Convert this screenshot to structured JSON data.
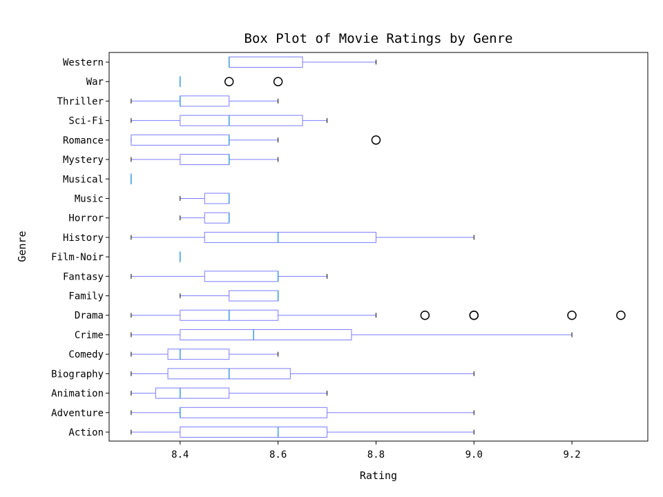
{
  "chart_data": {
    "type": "boxplot",
    "orientation": "horizontal",
    "title": "Box Plot of Movie Ratings by Genre",
    "xlabel": "Rating",
    "ylabel": "Genre",
    "xlim": [
      8.255,
      9.355
    ],
    "xticks": [
      8.4,
      8.6,
      8.8,
      9.0,
      9.2
    ],
    "xtick_labels": [
      "8.4",
      "8.6",
      "8.8",
      "9.0",
      "9.2"
    ],
    "grid": false,
    "box_color": "#7b7bff",
    "median_color": "#3a9be0",
    "flier_color": "#000000",
    "categories": [
      "Action",
      "Adventure",
      "Animation",
      "Biography",
      "Comedy",
      "Crime",
      "Drama",
      "Family",
      "Fantasy",
      "Film-Noir",
      "History",
      "Horror",
      "Music",
      "Musical",
      "Mystery",
      "Romance",
      "Sci-Fi",
      "Thriller",
      "War",
      "Western"
    ],
    "boxes": [
      {
        "name": "Action",
        "whislo": 8.3,
        "q1": 8.4,
        "med": 8.6,
        "q3": 8.7,
        "whishi": 9.0,
        "fliers": []
      },
      {
        "name": "Adventure",
        "whislo": 8.3,
        "q1": 8.4,
        "med": 8.4,
        "q3": 8.7,
        "whishi": 9.0,
        "fliers": []
      },
      {
        "name": "Animation",
        "whislo": 8.3,
        "q1": 8.35,
        "med": 8.4,
        "q3": 8.5,
        "whishi": 8.7,
        "fliers": []
      },
      {
        "name": "Biography",
        "whislo": 8.3,
        "q1": 8.375,
        "med": 8.5,
        "q3": 8.625,
        "whishi": 9.0,
        "fliers": []
      },
      {
        "name": "Comedy",
        "whislo": 8.3,
        "q1": 8.375,
        "med": 8.4,
        "q3": 8.5,
        "whishi": 8.6,
        "fliers": []
      },
      {
        "name": "Crime",
        "whislo": 8.3,
        "q1": 8.4,
        "med": 8.55,
        "q3": 8.75,
        "whishi": 9.2,
        "fliers": []
      },
      {
        "name": "Drama",
        "whislo": 8.3,
        "q1": 8.4,
        "med": 8.5,
        "q3": 8.6,
        "whishi": 8.8,
        "fliers": [
          8.9,
          9.0,
          9.0,
          9.2,
          9.3
        ]
      },
      {
        "name": "Family",
        "whislo": 8.4,
        "q1": 8.5,
        "med": 8.6,
        "q3": 8.6,
        "whishi": 8.6,
        "fliers": []
      },
      {
        "name": "Fantasy",
        "whislo": 8.3,
        "q1": 8.45,
        "med": 8.6,
        "q3": 8.6,
        "whishi": 8.7,
        "fliers": []
      },
      {
        "name": "Film-Noir",
        "whislo": 8.4,
        "q1": 8.4,
        "med": 8.4,
        "q3": 8.4,
        "whishi": 8.4,
        "fliers": []
      },
      {
        "name": "History",
        "whislo": 8.3,
        "q1": 8.45,
        "med": 8.6,
        "q3": 8.8,
        "whishi": 9.0,
        "fliers": []
      },
      {
        "name": "Horror",
        "whislo": 8.4,
        "q1": 8.45,
        "med": 8.5,
        "q3": 8.5,
        "whishi": 8.5,
        "fliers": []
      },
      {
        "name": "Music",
        "whislo": 8.4,
        "q1": 8.45,
        "med": 8.5,
        "q3": 8.5,
        "whishi": 8.5,
        "fliers": []
      },
      {
        "name": "Musical",
        "whislo": 8.3,
        "q1": 8.3,
        "med": 8.3,
        "q3": 8.3,
        "whishi": 8.3,
        "fliers": []
      },
      {
        "name": "Mystery",
        "whislo": 8.3,
        "q1": 8.4,
        "med": 8.5,
        "q3": 8.5,
        "whishi": 8.6,
        "fliers": []
      },
      {
        "name": "Romance",
        "whislo": 8.3,
        "q1": 8.3,
        "med": 8.5,
        "q3": 8.5,
        "whishi": 8.6,
        "fliers": [
          8.8
        ]
      },
      {
        "name": "Sci-Fi",
        "whislo": 8.3,
        "q1": 8.4,
        "med": 8.5,
        "q3": 8.65,
        "whishi": 8.7,
        "fliers": []
      },
      {
        "name": "Thriller",
        "whislo": 8.3,
        "q1": 8.4,
        "med": 8.4,
        "q3": 8.5,
        "whishi": 8.6,
        "fliers": []
      },
      {
        "name": "War",
        "whislo": 8.4,
        "q1": 8.4,
        "med": 8.4,
        "q3": 8.4,
        "whishi": 8.4,
        "fliers": [
          8.5,
          8.6
        ]
      },
      {
        "name": "Western",
        "whislo": 8.5,
        "q1": 8.5,
        "med": 8.5,
        "q3": 8.65,
        "whishi": 8.8,
        "fliers": []
      }
    ]
  }
}
